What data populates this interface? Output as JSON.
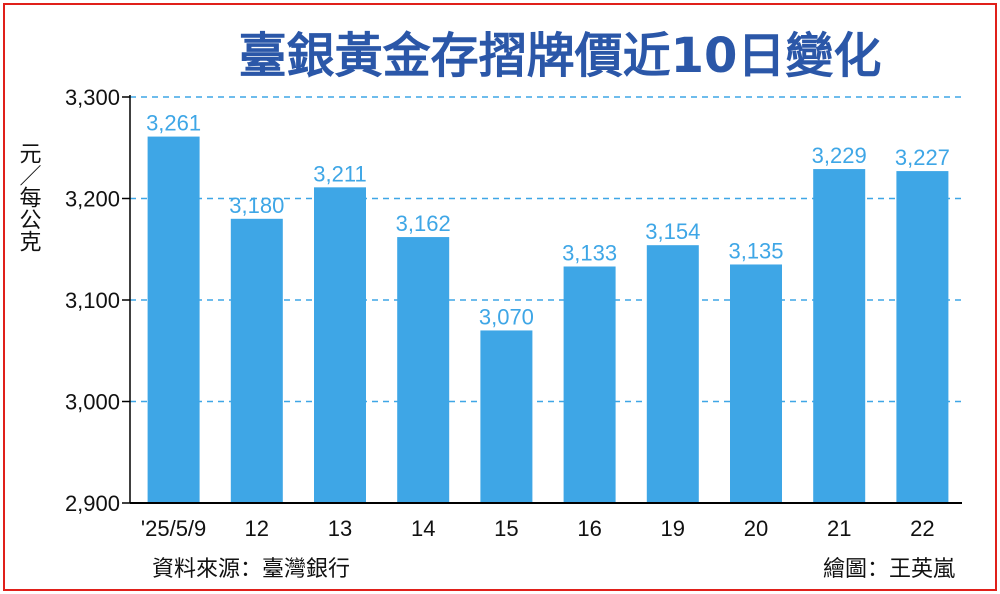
{
  "chart_data": {
    "type": "bar",
    "title": "臺銀黃金存摺牌價近10日變化",
    "ylabel": "元／每公克",
    "categories": [
      "'25/5/9",
      "12",
      "13",
      "14",
      "15",
      "16",
      "19",
      "20",
      "21",
      "22"
    ],
    "values": [
      3261,
      3180,
      3211,
      3162,
      3070,
      3133,
      3154,
      3135,
      3229,
      3227
    ],
    "data_labels": [
      "3,261",
      "3,180",
      "3,211",
      "3,162",
      "3,070",
      "3,133",
      "3,154",
      "3,135",
      "3,229",
      "3,227"
    ],
    "ylim": [
      2900,
      3300
    ],
    "yticks": [
      2900,
      3000,
      3100,
      3200,
      3300
    ],
    "ytick_labels": [
      "2,900",
      "3,000",
      "3,100",
      "3,200",
      "3,300"
    ],
    "grid": true,
    "colors": {
      "bar": "#3ea6e6",
      "label": "#3ea6e6",
      "title": "#2b57a8",
      "grid": "#3ea6e6",
      "border": "#e0201a"
    }
  },
  "footer": {
    "source": "資料來源：臺灣銀行",
    "credit": "繪圖：王英嵐"
  }
}
